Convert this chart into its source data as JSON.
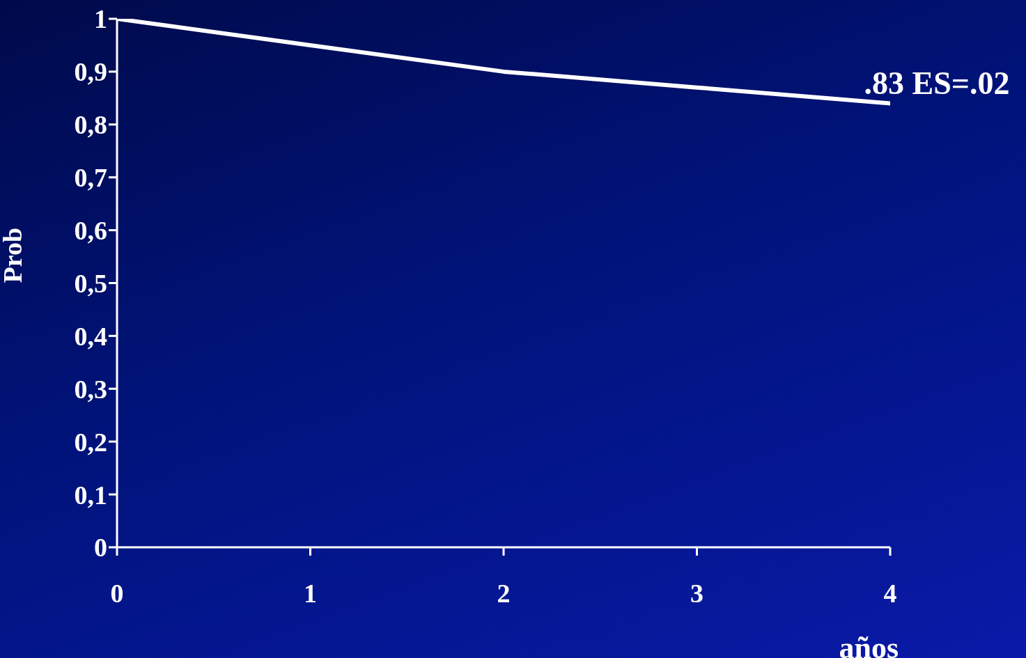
{
  "chart_data": {
    "type": "line",
    "xlabel": "años",
    "ylabel": "Prob",
    "x": [
      0,
      1,
      2,
      3,
      4
    ],
    "series": [
      {
        "color": "#ffffff",
        "values": [
          1,
          0.95,
          0.9,
          0.87,
          0.84
        ]
      }
    ],
    "xlim": [
      0,
      4
    ],
    "xticks": [
      0,
      1,
      2,
      3,
      4
    ],
    "ylim": [
      0,
      1
    ],
    "yticks": [
      0,
      {
        "value": 0.1,
        "label": "0,1"
      },
      {
        "value": 0.2,
        "label": "0,2"
      },
      {
        "value": 0.3,
        "label": "0,3"
      },
      {
        "value": 0.4,
        "label": "0,4"
      },
      {
        "value": 0.5,
        "label": "0,5"
      },
      {
        "value": 0.6,
        "label": "0,6"
      },
      {
        "value": 0.7,
        "label": "0,7"
      },
      {
        "value": 0.8,
        "label": "0,8"
      },
      {
        "value": 0.9,
        "label": "0,9"
      },
      1
    ],
    "annotations": [
      {
        "text": ".83 ES=.02",
        "x": 4,
        "y": 0.84
      }
    ],
    "grid": false,
    "legend": false,
    "marker": "none",
    "line_style": "solid"
  }
}
